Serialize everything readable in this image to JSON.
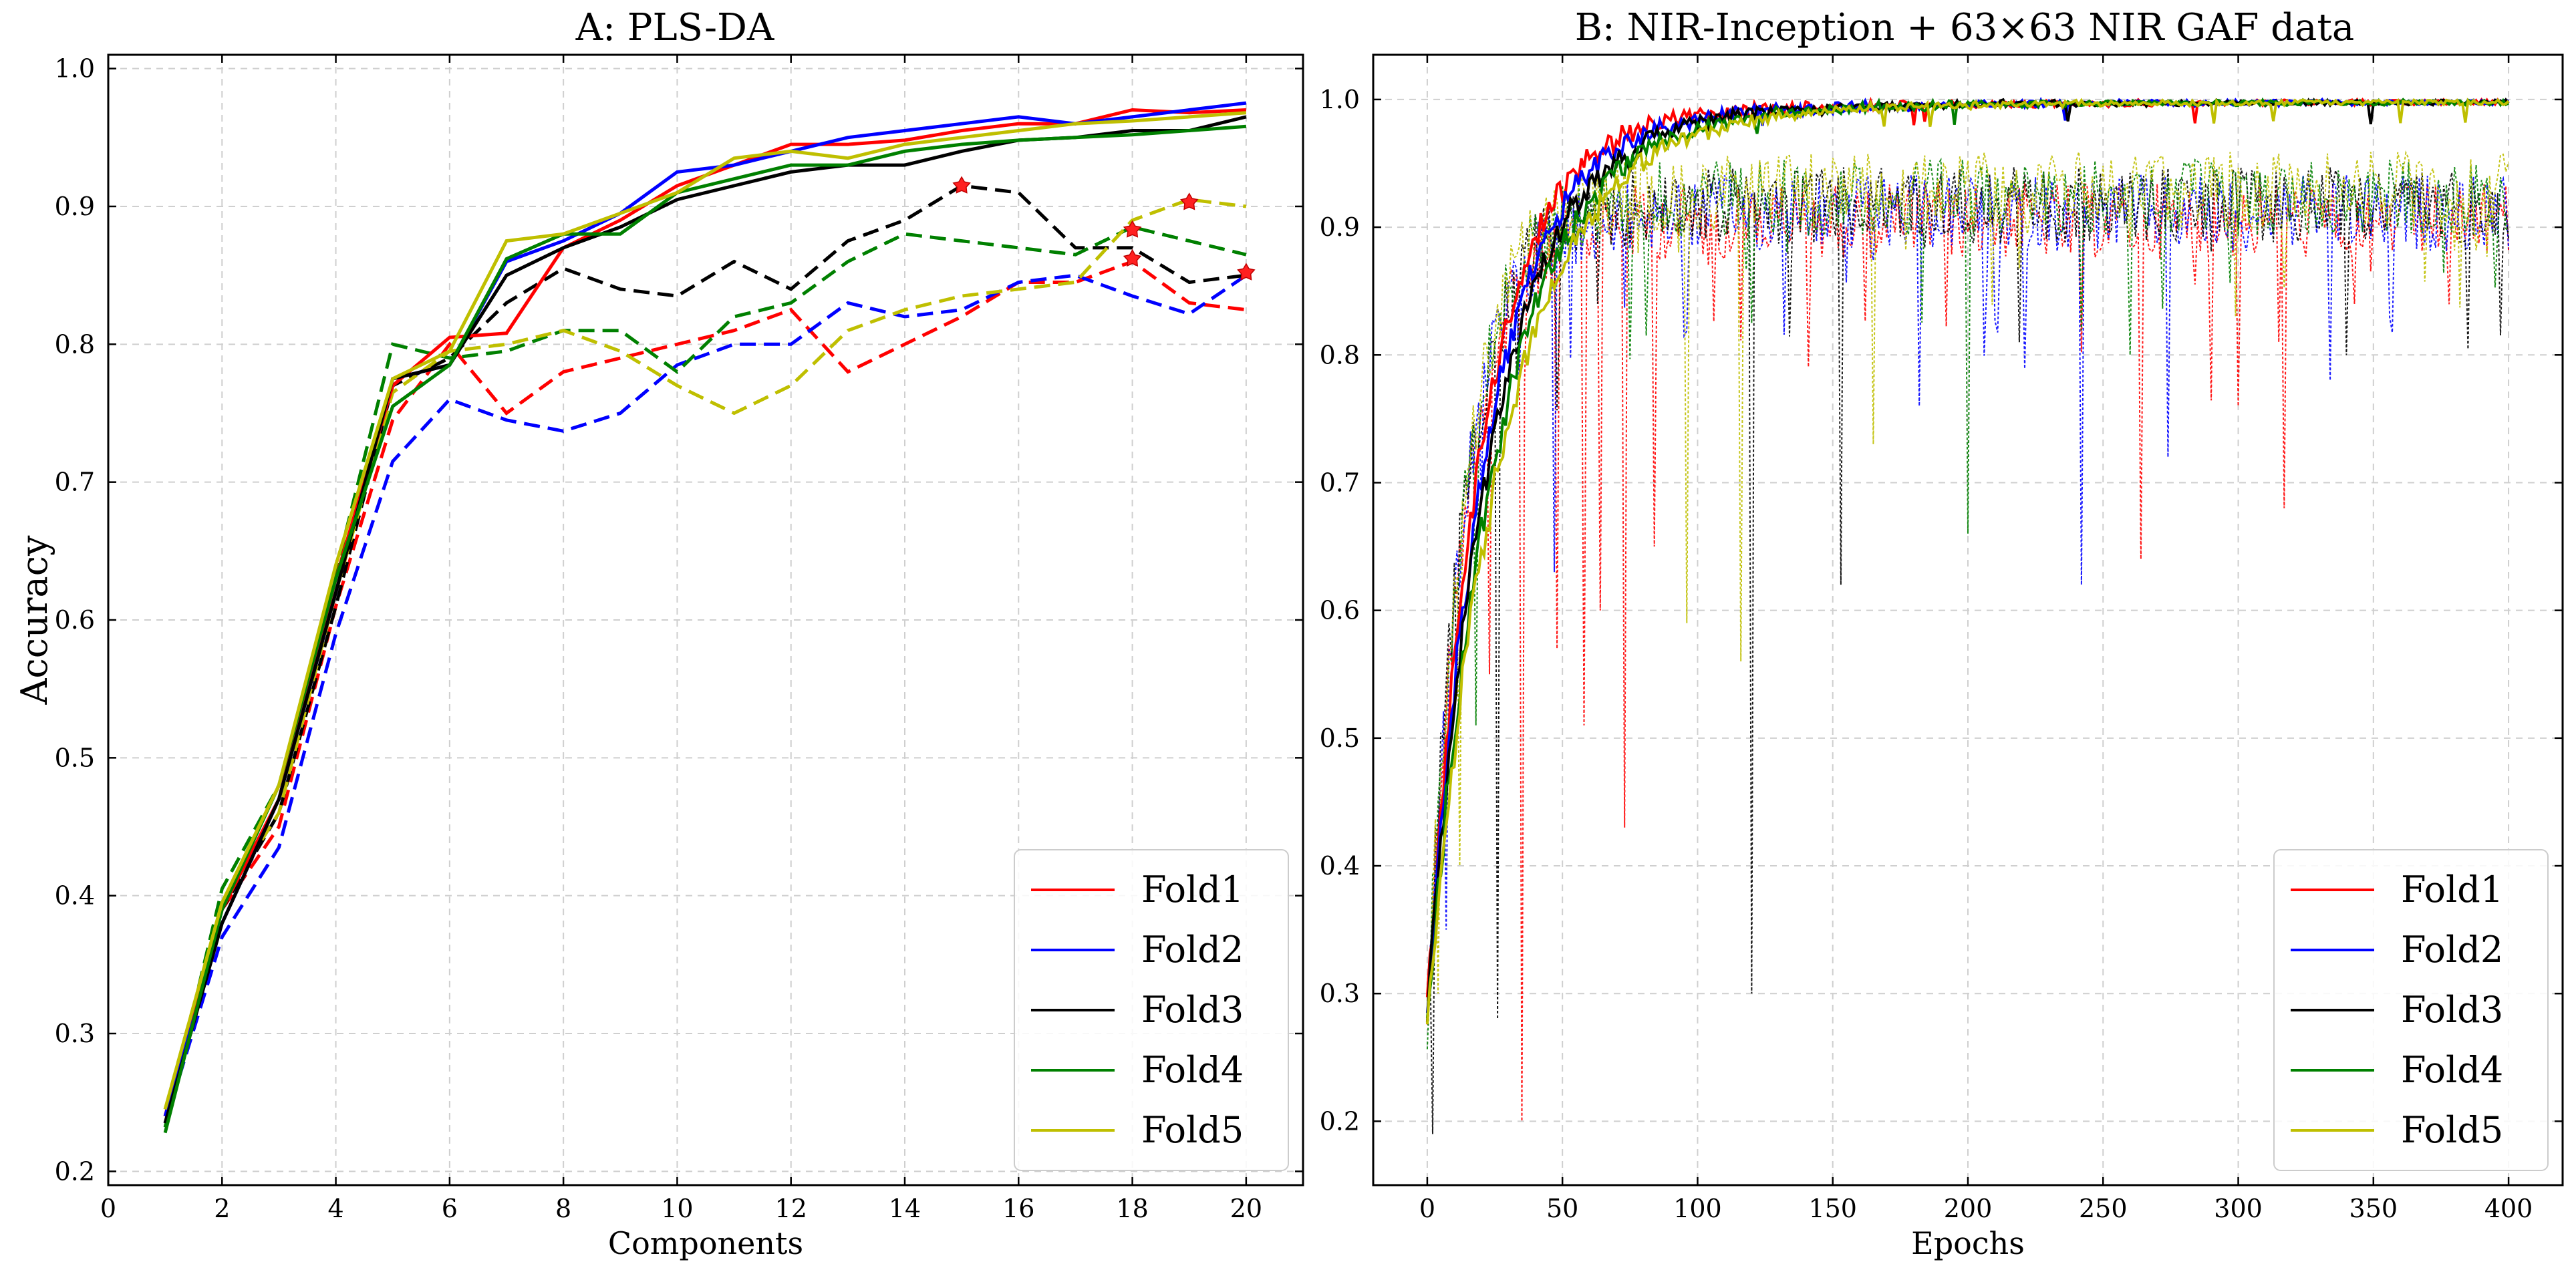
{
  "chart_data": [
    {
      "id": "A",
      "type": "line",
      "title": "A: PLS-DA",
      "xlabel": "Components",
      "ylabel": "Accuracy",
      "xlim": [
        0,
        21
      ],
      "ylim": [
        0.19,
        1.01
      ],
      "xticks": [
        0,
        2,
        4,
        6,
        8,
        10,
        12,
        14,
        16,
        18,
        20
      ],
      "yticks": [
        0.2,
        0.3,
        0.4,
        0.5,
        0.6,
        0.7,
        0.8,
        0.9,
        1.0
      ],
      "ytick_labels": [
        "0.2",
        "0.3",
        "0.4",
        "0.5",
        "0.6",
        "0.7",
        "0.8",
        "0.9",
        "1.0"
      ],
      "grid": true,
      "legend_position": "bottom-right",
      "x": [
        1,
        2,
        3,
        4,
        5,
        6,
        7,
        8,
        9,
        10,
        11,
        12,
        13,
        14,
        15,
        16,
        17,
        18,
        19,
        20
      ],
      "series": [
        {
          "name": "Fold1",
          "color": "#ff0000",
          "train": [
            0.24,
            0.39,
            0.47,
            0.63,
            0.77,
            0.805,
            0.808,
            0.87,
            0.89,
            0.915,
            0.93,
            0.945,
            0.945,
            0.948,
            0.955,
            0.96,
            0.96,
            0.97,
            0.968,
            0.97
          ],
          "test": [
            0.24,
            0.39,
            0.45,
            0.61,
            0.745,
            0.8,
            0.75,
            0.78,
            0.79,
            0.8,
            0.81,
            0.825,
            0.78,
            0.8,
            0.82,
            0.845,
            0.845,
            0.86,
            0.83,
            0.825
          ]
        },
        {
          "name": "Fold2",
          "color": "#0000ff",
          "train": [
            0.24,
            0.38,
            0.47,
            0.62,
            0.775,
            0.785,
            0.86,
            0.875,
            0.895,
            0.925,
            0.93,
            0.94,
            0.95,
            0.955,
            0.96,
            0.965,
            0.96,
            0.965,
            0.97,
            0.975
          ],
          "test": [
            0.235,
            0.37,
            0.435,
            0.59,
            0.715,
            0.76,
            0.745,
            0.737,
            0.75,
            0.785,
            0.8,
            0.8,
            0.83,
            0.82,
            0.825,
            0.845,
            0.85,
            0.835,
            0.822,
            0.85
          ]
        },
        {
          "name": "Fold3",
          "color": "#000000",
          "train": [
            0.235,
            0.38,
            0.47,
            0.62,
            0.775,
            0.785,
            0.85,
            0.87,
            0.885,
            0.905,
            0.915,
            0.925,
            0.93,
            0.93,
            0.94,
            0.948,
            0.95,
            0.955,
            0.955,
            0.965
          ],
          "test": [
            0.235,
            0.39,
            0.46,
            0.61,
            0.77,
            0.79,
            0.83,
            0.855,
            0.84,
            0.835,
            0.86,
            0.84,
            0.875,
            0.89,
            0.915,
            0.91,
            0.87,
            0.87,
            0.845,
            0.85
          ]
        },
        {
          "name": "Fold4",
          "color": "#008000",
          "train": [
            0.228,
            0.39,
            0.48,
            0.63,
            0.755,
            0.785,
            0.862,
            0.88,
            0.88,
            0.91,
            0.92,
            0.93,
            0.93,
            0.94,
            0.945,
            0.948,
            0.95,
            0.952,
            0.955,
            0.958
          ],
          "test": [
            0.232,
            0.405,
            0.48,
            0.635,
            0.8,
            0.79,
            0.795,
            0.81,
            0.81,
            0.78,
            0.82,
            0.83,
            0.86,
            0.88,
            0.875,
            0.87,
            0.865,
            0.885,
            0.875,
            0.865
          ]
        },
        {
          "name": "Fold5",
          "color": "#bfbf00",
          "train": [
            0.245,
            0.395,
            0.48,
            0.64,
            0.775,
            0.795,
            0.875,
            0.88,
            0.895,
            0.91,
            0.935,
            0.94,
            0.935,
            0.945,
            0.95,
            0.955,
            0.96,
            0.962,
            0.965,
            0.968
          ],
          "test": [
            0.245,
            0.395,
            0.46,
            0.62,
            0.765,
            0.795,
            0.8,
            0.81,
            0.795,
            0.77,
            0.75,
            0.77,
            0.81,
            0.825,
            0.835,
            0.84,
            0.845,
            0.89,
            0.905,
            0.9
          ]
        }
      ],
      "best_markers": [
        {
          "x": 15,
          "y": 0.915
        },
        {
          "x": 18,
          "y": 0.883
        },
        {
          "x": 18,
          "y": 0.862
        },
        {
          "x": 19,
          "y": 0.903
        },
        {
          "x": 20,
          "y": 0.852
        }
      ]
    },
    {
      "id": "B",
      "type": "line",
      "title": "B: NIR-Inception + 63×63 NIR GAF data",
      "xlabel": "Epochs",
      "ylabel": "",
      "xlim": [
        -20,
        420
      ],
      "ylim": [
        0.15,
        1.035
      ],
      "xticks": [
        0,
        50,
        100,
        150,
        200,
        250,
        300,
        350,
        400
      ],
      "yticks": [
        0.2,
        0.3,
        0.4,
        0.5,
        0.6,
        0.7,
        0.8,
        0.9,
        1.0
      ],
      "ytick_labels": [
        "0.2",
        "0.3",
        "0.4",
        "0.5",
        "0.6",
        "0.7",
        "0.8",
        "0.9",
        "1.0"
      ],
      "grid": true,
      "legend_position": "bottom-right",
      "epochs": 400,
      "train_start": 0.3,
      "train_final": 1.0,
      "test_plateau": 0.94,
      "series": [
        {
          "name": "Fold1",
          "color": "#ff0000",
          "test_dips": [
            [
              35,
              0.2
            ],
            [
              73,
              0.43
            ],
            [
              58,
              0.51
            ],
            [
              23,
              0.55
            ],
            [
              264,
              0.64
            ],
            [
              317,
              0.68
            ],
            [
              64,
              0.6
            ],
            [
              48,
              0.57
            ],
            [
              300,
              0.76
            ],
            [
              315,
              0.81
            ],
            [
              84,
              0.65
            ]
          ]
        },
        {
          "name": "Fold2",
          "color": "#0000ff",
          "test_dips": [
            [
              242,
              0.62
            ],
            [
              274,
              0.72
            ],
            [
              334,
              0.78
            ],
            [
              47,
              0.63
            ],
            [
              7,
              0.35
            ],
            [
              182,
              0.76
            ]
          ]
        },
        {
          "name": "Fold3",
          "color": "#000000",
          "test_dips": [
            [
              120,
              0.3
            ],
            [
              26,
              0.28
            ],
            [
              2,
              0.19
            ],
            [
              153,
              0.62
            ],
            [
              219,
              0.81
            ]
          ]
        },
        {
          "name": "Fold4",
          "color": "#008000",
          "test_dips": [
            [
              200,
              0.66
            ],
            [
              18,
              0.51
            ],
            [
              260,
              0.8
            ]
          ]
        },
        {
          "name": "Fold5",
          "color": "#bfbf00",
          "test_dips": [
            [
              96,
              0.59
            ],
            [
              116,
              0.56
            ],
            [
              12,
              0.4
            ],
            [
              4,
              0.3
            ],
            [
              165,
              0.73
            ]
          ]
        }
      ]
    }
  ]
}
